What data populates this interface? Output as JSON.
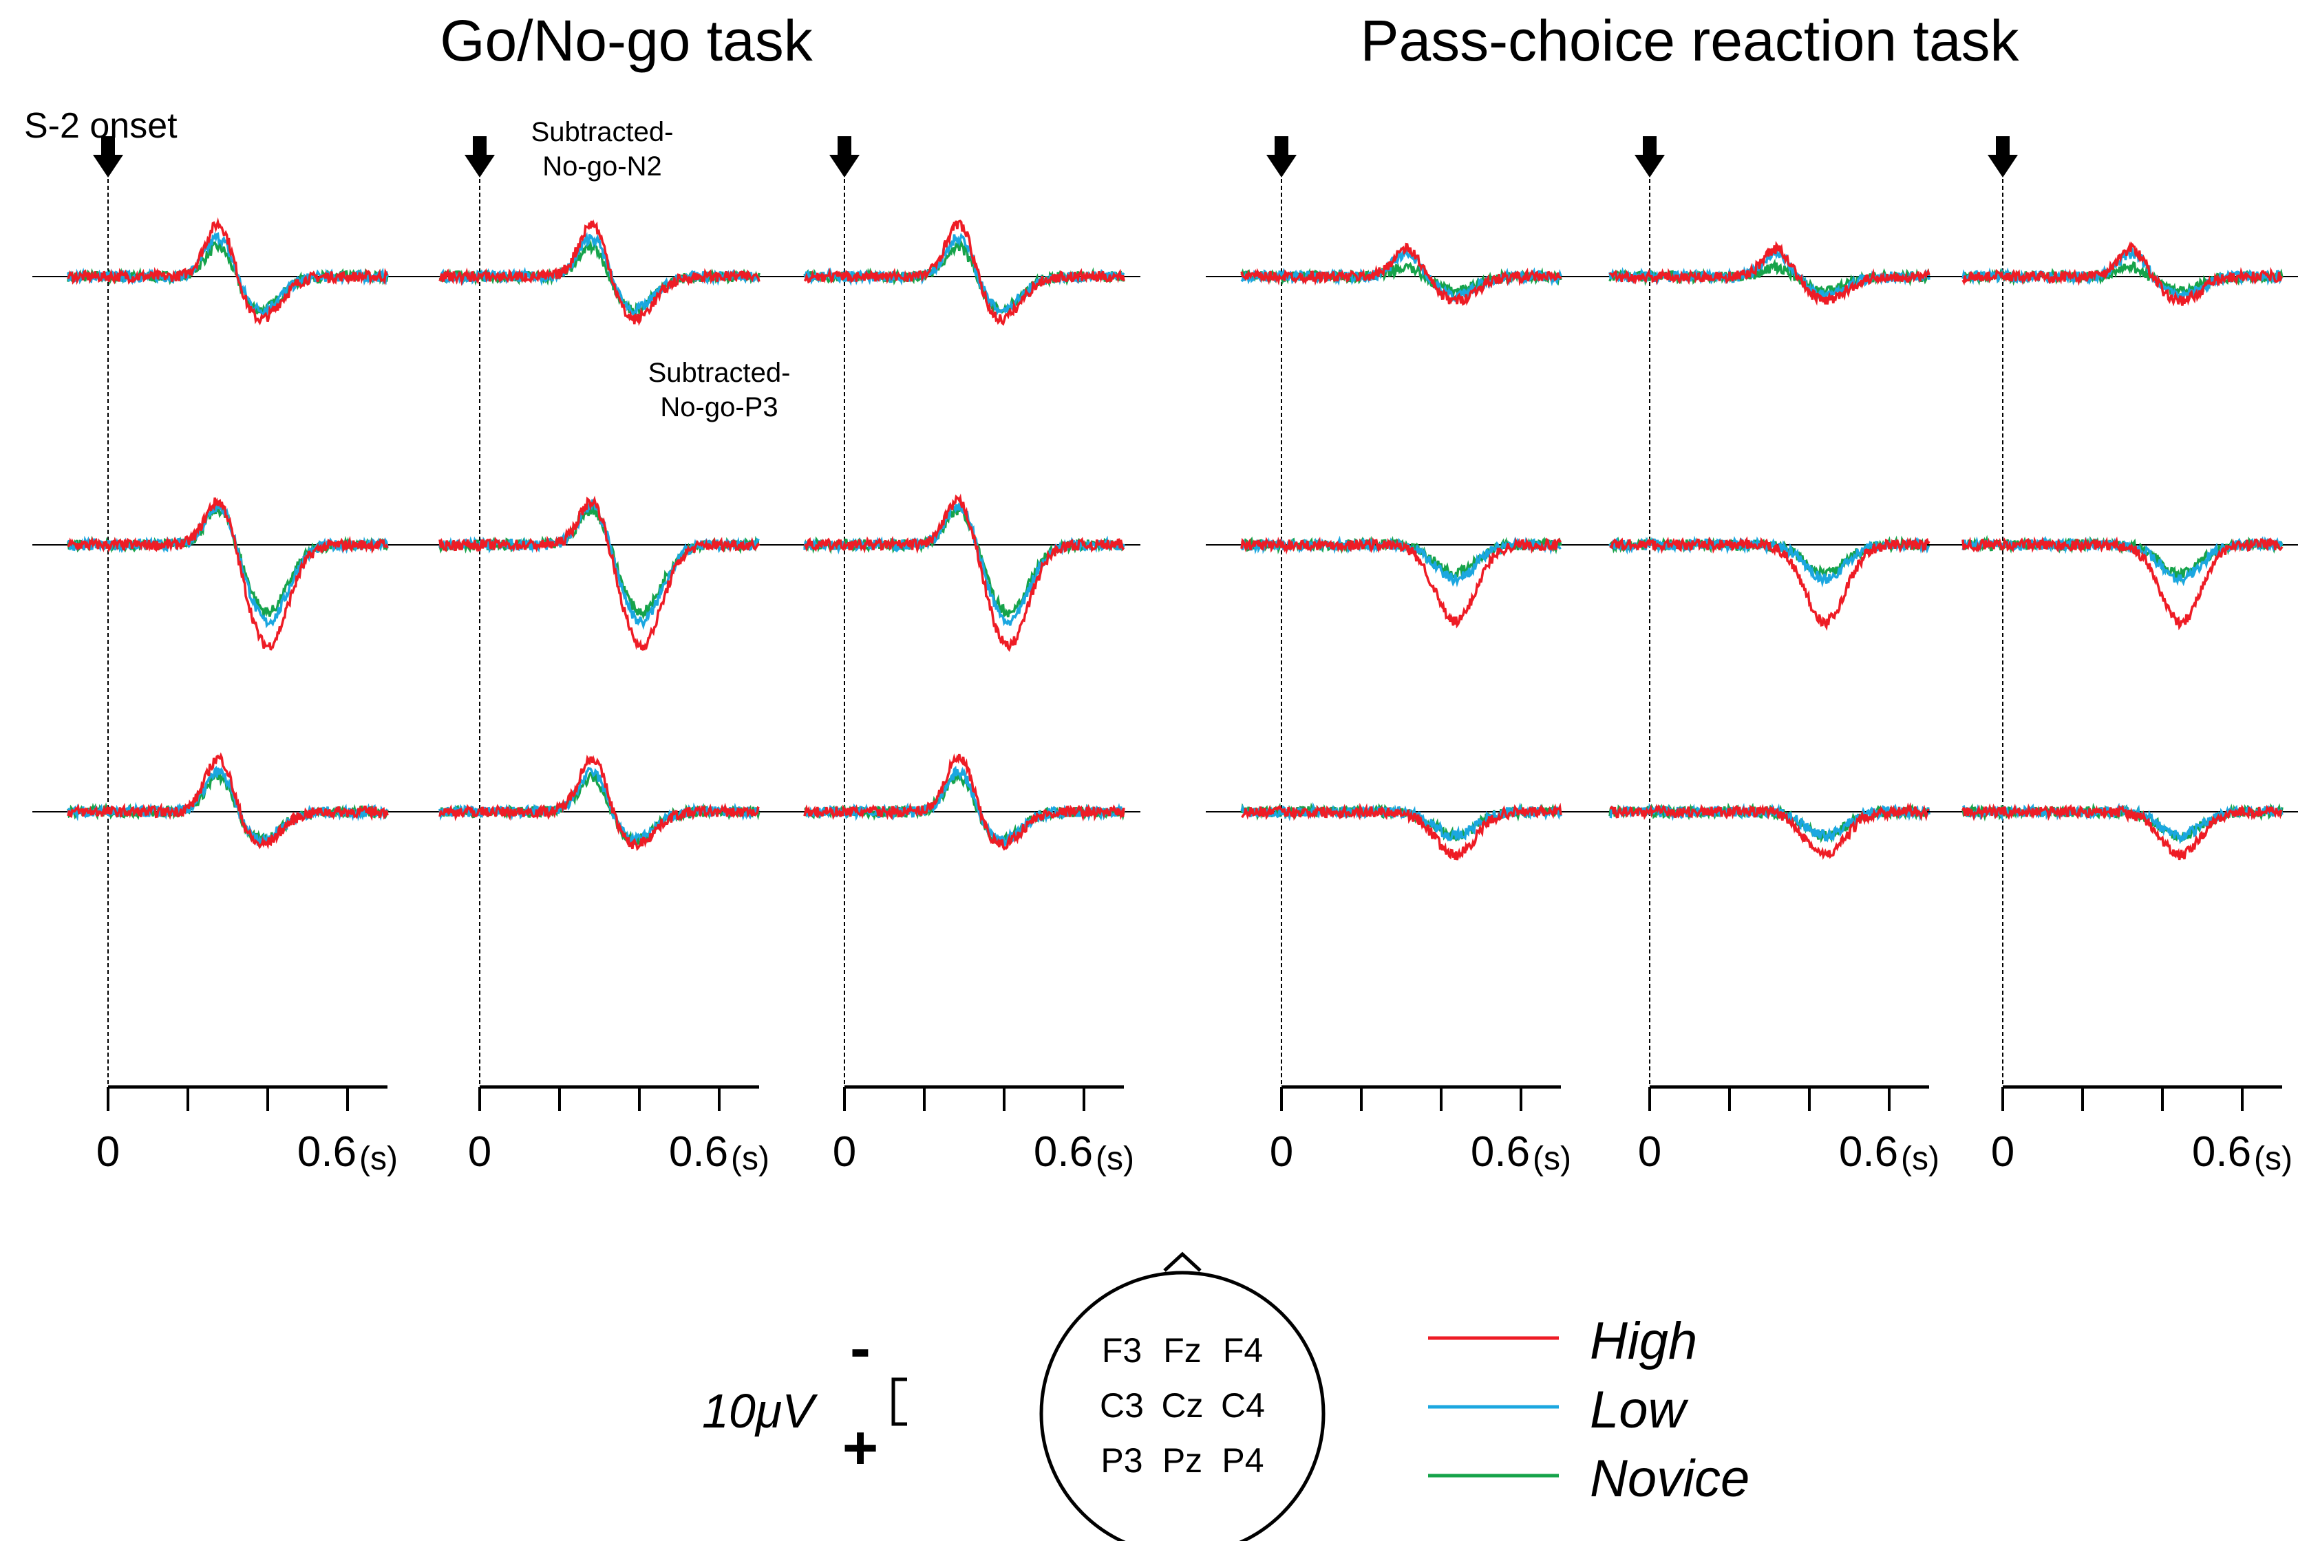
{
  "chart_data": {
    "type": "line",
    "title_left": "Go/No-go task",
    "title_right": "Pass-choice reaction task",
    "onset_label": "S-2 onset",
    "annotation_n2": [
      "Subtracted-",
      "No-go-N2"
    ],
    "annotation_p3": [
      "Subtracted-",
      "No-go-P3"
    ],
    "x_unit": "(s)",
    "x_tick_labels": [
      "0",
      "0.6"
    ],
    "x_ticks_s": [
      0,
      0.2,
      0.4,
      0.6
    ],
    "x_range_s": [
      0,
      0.7
    ],
    "electrode_grid": [
      [
        "F3",
        "Fz",
        "F4"
      ],
      [
        "C3",
        "Cz",
        "C4"
      ],
      [
        "P3",
        "Pz",
        "P4"
      ]
    ],
    "electrode_rows": [
      "F",
      "C",
      "P"
    ],
    "electrode_cols_left": [
      "F3/C3/P3",
      "Fz/Cz/Pz",
      "F4/C4/P4"
    ],
    "scale": {
      "value": "10",
      "unit": "μV",
      "neg_sign": "-",
      "pos_sign": "+"
    },
    "legend": [
      {
        "name": "High",
        "color": "#ee1c25"
      },
      {
        "name": "Low",
        "color": "#1ba7e0"
      },
      {
        "name": "Novice",
        "color": "#16a34a"
      }
    ],
    "waveform_peaks_uV_negative_up": {
      "go_nogo": {
        "F_row": {
          "N2_at_0.28s": [
            12,
            9,
            7
          ],
          "P3_at_0.38s": [
            -9,
            -7,
            -7
          ]
        },
        "C_row": {
          "N2_at_0.28s": [
            10,
            9,
            8
          ],
          "P3_at_0.40s": [
            -21,
            -16,
            -14
          ]
        },
        "P_row": {
          "N2_at_0.28s": [
            12,
            9,
            8
          ],
          "P3_at_0.38s": [
            -7,
            -6,
            -6
          ]
        }
      },
      "pass_choice": {
        "F_row": {
          "peak_at_0.30s": [
            6,
            5,
            2
          ],
          "trough_at_0.42s": [
            -5,
            -4,
            -3
          ]
        },
        "C_row": {
          "trough_at_0.42s": [
            -16,
            -7,
            -6
          ]
        },
        "P_row": {
          "trough_at_0.42s": [
            -9,
            -5,
            -5
          ]
        }
      }
    }
  }
}
